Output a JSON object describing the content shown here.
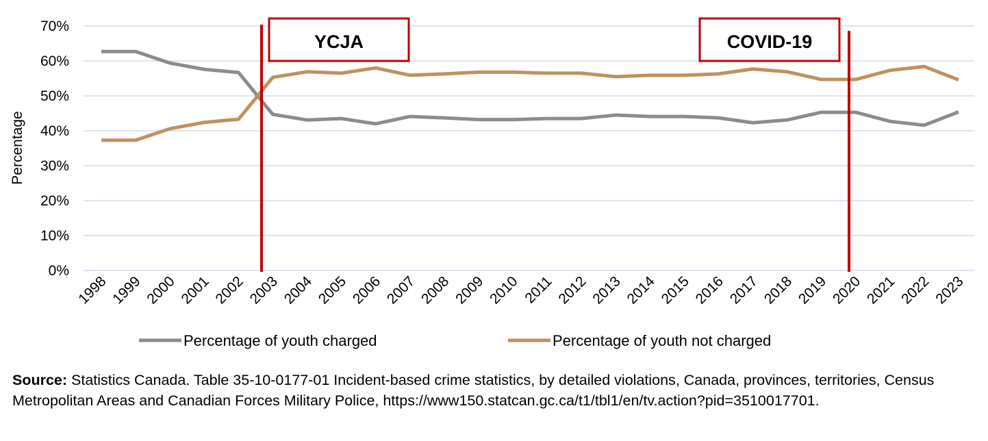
{
  "chart_data": {
    "type": "line",
    "ylabel": "Percentage",
    "xlabel": "",
    "ylim": [
      0,
      70
    ],
    "yticks": [
      "0%",
      "10%",
      "20%",
      "30%",
      "40%",
      "50%",
      "60%",
      "70%"
    ],
    "grid": true,
    "legend_position": "bottom",
    "categories": [
      "1998",
      "1999",
      "2000",
      "2001",
      "2002",
      "2003",
      "2004",
      "2005",
      "2006",
      "2007",
      "2008",
      "2009",
      "2010",
      "2011",
      "2012",
      "2013",
      "2014",
      "2015",
      "2016",
      "2017",
      "2018",
      "2019",
      "2020",
      "2021",
      "2022",
      "2023"
    ],
    "series": [
      {
        "name": "Percentage of youth charged",
        "color": "#8c8c8c",
        "values": [
          62.7,
          62.7,
          59.4,
          57.6,
          56.7,
          44.7,
          43.1,
          43.5,
          42.0,
          44.1,
          43.7,
          43.2,
          43.2,
          43.5,
          43.5,
          44.5,
          44.1,
          44.1,
          43.7,
          42.3,
          43.1,
          45.3,
          45.3,
          42.7,
          41.6,
          45.4
        ]
      },
      {
        "name": "Percentage of youth not charged",
        "color": "#c0915e",
        "values": [
          37.3,
          37.3,
          40.6,
          42.4,
          43.3,
          55.3,
          56.9,
          56.5,
          58.0,
          55.9,
          56.3,
          56.8,
          56.8,
          56.5,
          56.5,
          55.5,
          55.9,
          55.9,
          56.3,
          57.7,
          56.9,
          54.7,
          54.7,
          57.3,
          58.4,
          54.6
        ]
      }
    ],
    "annotations": [
      {
        "label": "YCJA",
        "at": "2002.5",
        "color": "#c00000"
      },
      {
        "label": "COVID-19",
        "at": "2020",
        "color": "#c00000"
      }
    ]
  },
  "source": {
    "label": "Source:",
    "text": " Statistics Canada. Table 35-10-0177-01 Incident-based crime statistics, by detailed violations, Canada, provinces, territories, Census Metropolitan Areas and Canadian Forces Military Police, https://www150.statcan.gc.ca/t1/tbl1/en/tv.action?pid=3510017701."
  }
}
